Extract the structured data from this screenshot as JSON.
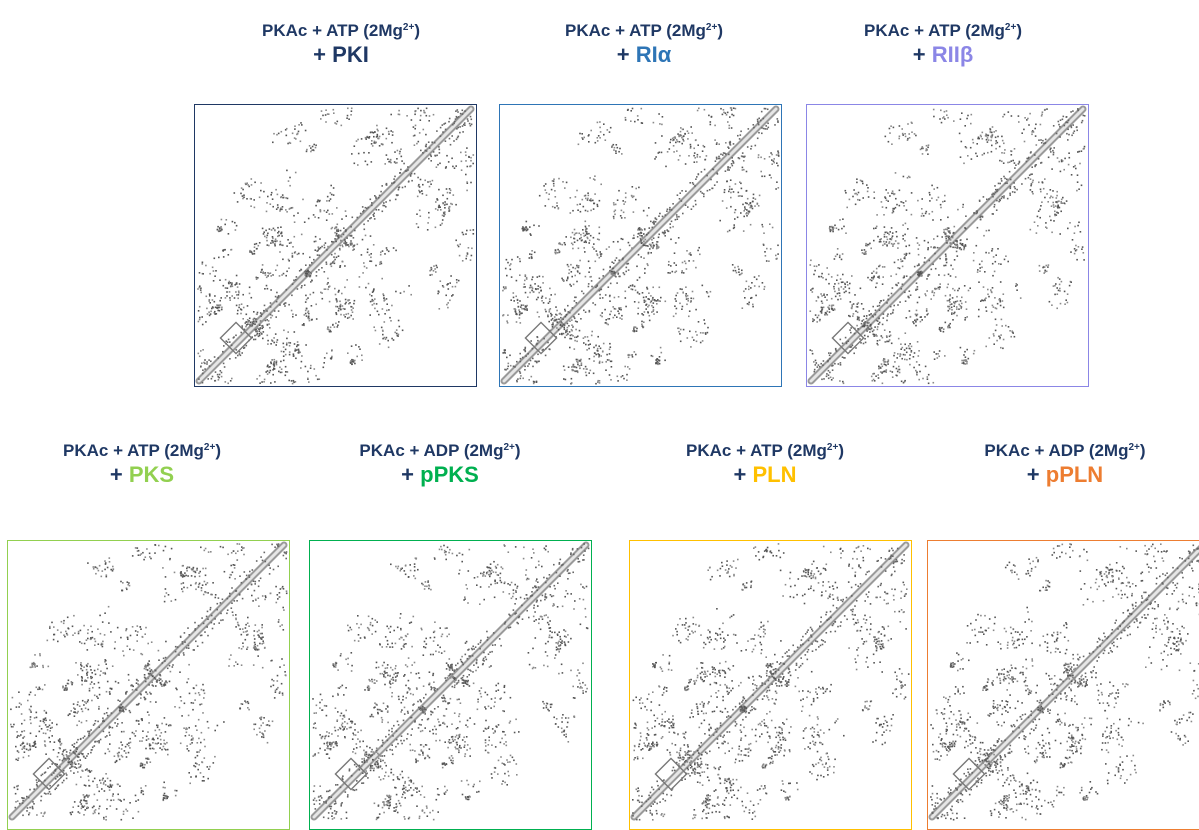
{
  "panels": [
    {
      "line1_pre": "PKAc + ATP (2Mg",
      "sup": "2+",
      "line1_post": ")",
      "line2_prefix": "+ ",
      "ligand": "PKI",
      "color": "#1f3864"
    },
    {
      "line1_pre": "PKAc + ATP (2Mg",
      "sup": "2+",
      "line1_post": ")",
      "line2_prefix": "+ ",
      "ligand": "RIα",
      "color": "#2e75b6"
    },
    {
      "line1_pre": "PKAc + ATP (2Mg",
      "sup": "2+",
      "line1_post": ")",
      "line2_prefix": "+ ",
      "ligand": "RIIβ",
      "color": "#8b86e6"
    },
    {
      "line1_pre": "PKAc + ATP (2Mg",
      "sup": "2+",
      "line1_post": ")",
      "line2_prefix": "+ ",
      "ligand": "PKS",
      "color": "#92d050"
    },
    {
      "line1_pre": "PKAc + ADP (2Mg",
      "sup": "2+",
      "line1_post": ")",
      "line2_prefix": "+ ",
      "ligand": "pPKS",
      "color": "#00b050"
    },
    {
      "line1_pre": "PKAc + ATP (2Mg",
      "sup": "2+",
      "line1_post": ")",
      "line2_prefix": "+ ",
      "ligand": "PLN",
      "color": "#ffc000"
    },
    {
      "line1_pre": "PKAc + ADP (2Mg",
      "sup": "2+",
      "line1_post": ")",
      "line2_prefix": "+ ",
      "ligand": "pPLN",
      "color": "#ed7d31"
    }
  ]
}
